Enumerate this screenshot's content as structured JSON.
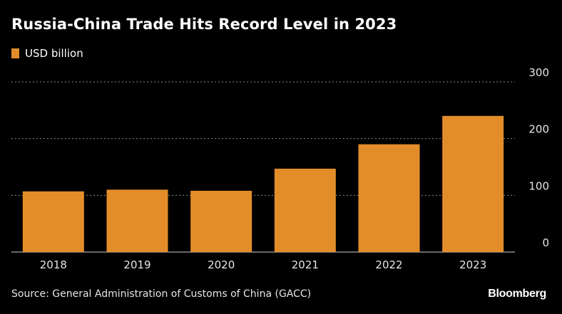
{
  "title": "Russia-China Trade Hits Record Level in 2023",
  "source": "Source: General Administration of Customs of China (GACC)",
  "brand": "Bloomberg",
  "colors": {
    "bar": "#E38D2A",
    "grid": "#8a8a8a",
    "axis_text": "#e6e6e6",
    "background": "#000000"
  },
  "chart_data": {
    "type": "bar",
    "title": "Russia-China Trade Hits Record Level in 2023",
    "categories": [
      "2018",
      "2019",
      "2020",
      "2021",
      "2022",
      "2023"
    ],
    "series": [
      {
        "name": "USD billion",
        "values": [
          107,
          110,
          108,
          147,
          190,
          240
        ]
      }
    ],
    "ylim": [
      0,
      300
    ],
    "yticks": [
      0,
      100,
      200,
      300
    ],
    "y_axis_side": "right",
    "grid": true,
    "legend_position": "top-left"
  }
}
